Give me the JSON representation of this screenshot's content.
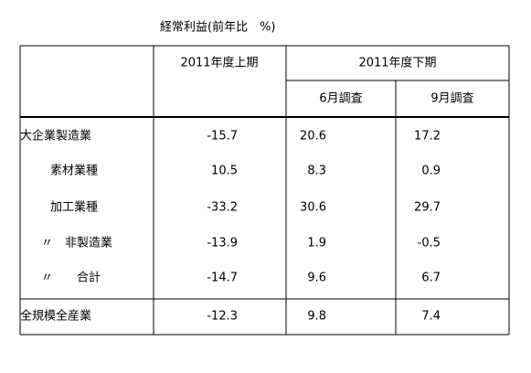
{
  "title": "経常利益(前年比　%)",
  "header": {
    "first_half": "2011年度上期",
    "second_half": "2011年度下期",
    "june": "6月調査",
    "september": "9月調査"
  },
  "rows": [
    {
      "label": "大企業製造業",
      "values": [
        -15.7,
        20.6,
        17.2
      ]
    },
    {
      "label": "素材業種",
      "values": [
        10.5,
        8.3,
        0.9
      ]
    },
    {
      "label": "加工業種",
      "values": [
        -33.2,
        30.6,
        29.7
      ]
    },
    {
      "label": "〃　非製造業",
      "values": [
        -13.9,
        1.9,
        -0.5
      ]
    },
    {
      "label": "〃　　合計",
      "values": [
        -14.7,
        9.6,
        6.7
      ]
    },
    {
      "label": "全規模全産業",
      "values": [
        -12.3,
        9.8,
        7.4
      ]
    }
  ]
}
